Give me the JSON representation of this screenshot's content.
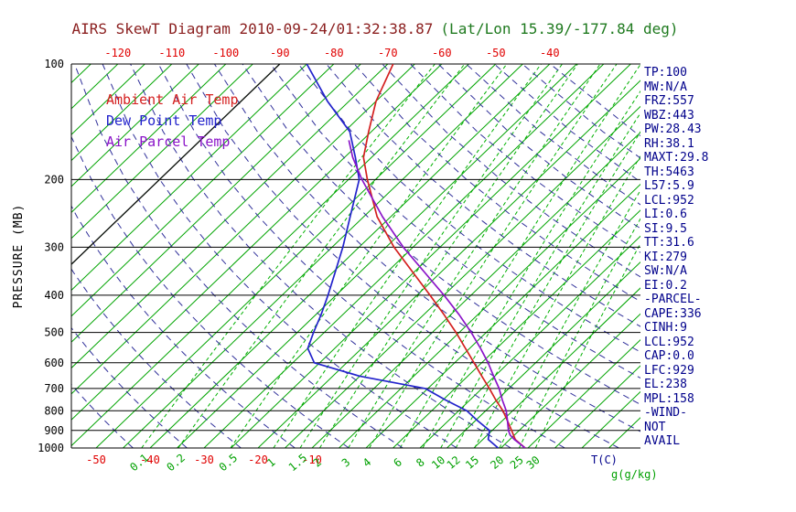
{
  "title": {
    "main": "AIRS SkewT Diagram 2010-09-24/01:32:38.87",
    "latlon": "(Lat/Lon 15.39/-177.84 deg)"
  },
  "legend": [
    {
      "label": "Ambient Air Temp",
      "color": "#d42020"
    },
    {
      "label": "Dew Point Temp",
      "color": "#2222cc"
    },
    {
      "label": "Air Parcel Temp",
      "color": "#8a14c8"
    }
  ],
  "stats_panel": [
    "TP:100",
    "MW:N/A",
    "FRZ:557",
    "WBZ:443",
    "PW:28.43",
    "RH:38.1",
    "MAXT:29.8",
    "TH:5463",
    "L57:5.9",
    "LCL:952",
    "LI:0.6",
    "SI:9.5",
    "TT:31.6",
    "KI:279",
    "SW:N/A",
    "EI:0.2",
    "-PARCEL-",
    "CAPE:336",
    "CINH:9",
    "LCL:952",
    "CAP:0.0",
    "LFC:929",
    "EL:238",
    "MPL:158",
    "-WIND-",
    "NOT",
    "AVAIL"
  ],
  "chart_data": {
    "type": "line",
    "variant": "skew-t-log-p",
    "title": "AIRS SkewT Diagram 2010-09-24/01:32:38.87 (Lat/Lon 15.39/-177.84 deg)",
    "ylabel": "PRESSURE (MB)",
    "x_unit_label": "T(C)",
    "mixing_unit_label": "g(g/kg)",
    "pressure_range_mb": [
      100,
      1000
    ],
    "pressure_ticks_mb": [
      100,
      200,
      300,
      400,
      500,
      600,
      700,
      800,
      900,
      1000
    ],
    "top_temp_ticks_c": [
      -120,
      -110,
      -100,
      -90,
      -80,
      -70,
      -60,
      -50,
      -40
    ],
    "bottom_temp_ticks_c": [
      -50,
      -40,
      -30,
      -20,
      -10
    ],
    "mixing_ratio_ticks_gkg": [
      0.1,
      0.2,
      0.5,
      1,
      1.5,
      2,
      3,
      4,
      6,
      8,
      10,
      12,
      15,
      20,
      25,
      30
    ],
    "series": [
      {
        "name": "Ambient Air Temp",
        "color": "#d42020",
        "pressure_mb": [
          1000,
          950,
          900,
          850,
          800,
          750,
          700,
          650,
          600,
          550,
          500,
          450,
          400,
          350,
          300,
          250,
          200,
          175,
          150,
          125,
          100
        ],
        "temp_c": [
          29.5,
          26.0,
          23.6,
          21.0,
          18.2,
          14.8,
          11.4,
          7.6,
          3.6,
          -0.8,
          -5.6,
          -11.2,
          -17.6,
          -25.0,
          -33.5,
          -42.5,
          -51.5,
          -56.5,
          -60.5,
          -65.0,
          -69.0
        ]
      },
      {
        "name": "Dew Point Temp",
        "color": "#2222cc",
        "pressure_mb": [
          1000,
          950,
          900,
          850,
          800,
          750,
          700,
          650,
          600,
          550,
          500,
          450,
          400,
          350,
          300,
          250,
          200,
          175,
          150,
          125,
          100
        ],
        "temp_c": [
          24.5,
          21.0,
          19.5,
          15.5,
          11.5,
          5.5,
          -0.5,
          -15.0,
          -26.0,
          -30.0,
          -32.0,
          -34.0,
          -36.5,
          -39.5,
          -43.0,
          -47.5,
          -53.0,
          -58.0,
          -64.0,
          -74.0,
          -85.0
        ]
      },
      {
        "name": "Air Parcel Temp",
        "color": "#8a14c8",
        "pressure_mb": [
          1000,
          950,
          925,
          900,
          850,
          800,
          750,
          700,
          650,
          600,
          550,
          500,
          450,
          400,
          350,
          300,
          250,
          200,
          175,
          158
        ],
        "temp_c": [
          29.5,
          25.8,
          24.2,
          23.0,
          21.0,
          18.8,
          16.0,
          13.2,
          9.8,
          6.2,
          2.0,
          -2.8,
          -8.4,
          -15.0,
          -22.8,
          -31.8,
          -41.5,
          -52.5,
          -58.5,
          -62.5
        ]
      }
    ],
    "grid": {
      "isotherms_c": {
        "min": -130,
        "max": 45,
        "step": 5,
        "color": "#00a400",
        "style": "solid"
      },
      "highlight_isotherm_c": -90,
      "dry_adiabats_theta_k": {
        "min": 230,
        "max": 450,
        "step": 10,
        "color": "#30309a",
        "style": "dashed"
      },
      "mixing_ratio_lines_gkg": [
        0.1,
        0.2,
        0.5,
        1,
        1.5,
        2,
        3,
        4,
        6,
        8,
        10,
        12,
        15,
        20,
        25,
        30
      ],
      "mixing_color": "#00b000",
      "pressure_line_color": "#000000"
    },
    "colors": {
      "top_axis_ticks": "#e00000",
      "bottom_temp_ticks": "#e00000",
      "mixing_ticks": "#00a000",
      "pressure_ticks": "#000000",
      "stats_text": "#00008b",
      "t_unit_label": "#00008b",
      "title_main": "#8b2020",
      "title_latlon": "#1f7a1f"
    }
  }
}
